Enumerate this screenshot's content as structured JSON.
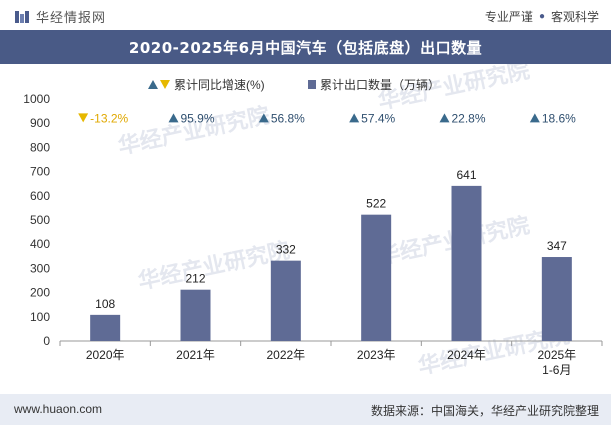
{
  "header": {
    "brand": "华经情报网",
    "tags": [
      "专业严谨",
      "客观科学"
    ]
  },
  "title": "2020-2025年6月中国汽车（包括底盘）出口数量",
  "footer": {
    "url": "www.huaon.com",
    "source": "数据来源：中国海关，华经产业研究院整理"
  },
  "watermark": "华经产业研究院",
  "colors": {
    "bar": "#5f6b95",
    "title_bg": "#495a86",
    "up_marker": "#3a6a8c",
    "down_marker": "#e6b800",
    "down_text": "#e0a800",
    "up_text": "#2f4f6f"
  },
  "chart_data": {
    "type": "bar",
    "categories": [
      "2020年",
      "2021年",
      "2022年",
      "2023年",
      "2024年",
      "2025年\n1-6月"
    ],
    "series": [
      {
        "name": "累计出口数量（万辆）",
        "values": [
          108,
          212,
          332,
          522,
          641,
          347
        ]
      }
    ],
    "growth": {
      "name": "累计同比增速(%)",
      "labels": [
        "-13.2%",
        "95.9%",
        "56.8%",
        "57.4%",
        "22.8%",
        "18.6%"
      ],
      "direction": [
        "down",
        "up",
        "up",
        "up",
        "up",
        "up"
      ]
    },
    "ylim": [
      0,
      1000
    ],
    "yticks": [
      0,
      100,
      200,
      300,
      400,
      500,
      600,
      700,
      800,
      900,
      1000
    ],
    "legend_position": "top-center",
    "grid": false
  }
}
